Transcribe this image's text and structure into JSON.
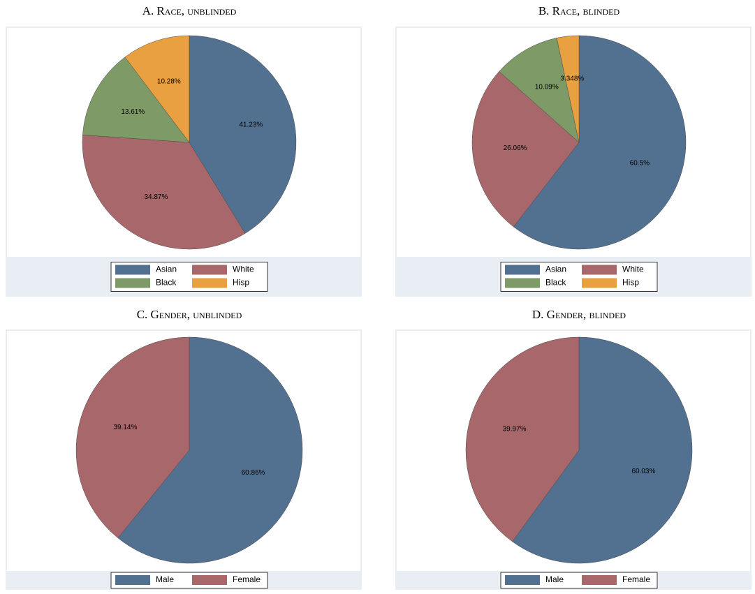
{
  "chart_data": [
    {
      "type": "pie",
      "title": "A. Race, unblinded",
      "categories": [
        "Asian",
        "White",
        "Black",
        "Hisp"
      ],
      "values": [
        41.23,
        34.87,
        13.61,
        10.28
      ],
      "value_labels": [
        "41.23%",
        "34.87%",
        "13.61%",
        "10.28%"
      ],
      "colors": [
        "#52708f",
        "#a8676a",
        "#7e9a66",
        "#e9a040"
      ]
    },
    {
      "type": "pie",
      "title": "B. Race, blinded",
      "categories": [
        "Asian",
        "White",
        "Black",
        "Hisp"
      ],
      "values": [
        60.5,
        26.06,
        10.09,
        3.348
      ],
      "value_labels": [
        "60.5%",
        "26.06%",
        "10.09%",
        "3.348%"
      ],
      "colors": [
        "#52708f",
        "#a8676a",
        "#7e9a66",
        "#e9a040"
      ]
    },
    {
      "type": "pie",
      "title": "C. Gender, unblinded",
      "categories": [
        "Male",
        "Female"
      ],
      "values": [
        60.86,
        39.14
      ],
      "value_labels": [
        "60.86%",
        "39.14%"
      ],
      "colors": [
        "#52708f",
        "#a8676a"
      ]
    },
    {
      "type": "pie",
      "title": "D. Gender, blinded",
      "categories": [
        "Male",
        "Female"
      ],
      "values": [
        60.03,
        39.97
      ],
      "value_labels": [
        "60.03%",
        "39.97%"
      ],
      "colors": [
        "#52708f",
        "#a8676a"
      ]
    }
  ]
}
